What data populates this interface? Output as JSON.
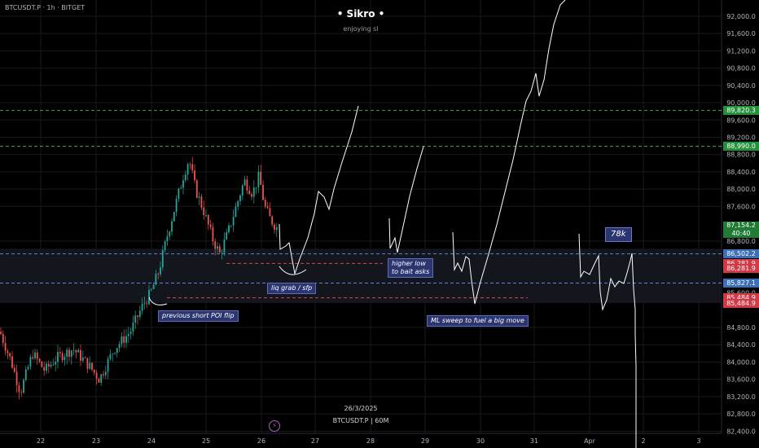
{
  "header": {
    "symbol_line": "BTCUSDT.P · 1h · BITGET",
    "title": "• Sikro •",
    "subtitle": "enjoying sl"
  },
  "watermark": {
    "date": "26/3/2025",
    "symbol_line": "BTCUSDT.P | 60M"
  },
  "icons": {
    "flash": "lightning-icon"
  },
  "colors": {
    "background": "#000000",
    "grid": "#1a1a1a",
    "candle_up": "#26a69a",
    "candle_down": "#ef5350",
    "level_green": "#3fae4f",
    "level_blue": "#5f82d6",
    "level_red": "#e0444f",
    "zone": "#13161c",
    "drawing": "#ffffff"
  },
  "price_axis": {
    "ticks": [
      "92,000.0",
      "91,600.0",
      "91,200.0",
      "90,800.0",
      "90,400.0",
      "90,000.0",
      "89,600.0",
      "89,200.0",
      "88,800.0",
      "88,400.0",
      "88,000.0",
      "87,600.0",
      "86,800.0",
      "85,600.0",
      "84,800.0",
      "84,400.0",
      "84,000.0",
      "83,600.0",
      "83,200.0",
      "82,800.0",
      "82,400.0"
    ],
    "tags": [
      {
        "label": "89,820.3",
        "style": "green",
        "price": 89820.3
      },
      {
        "label": "88,990.0",
        "style": "green",
        "price": 88990.0
      },
      {
        "label": "87,154.2",
        "style": "current",
        "price": 87154.2,
        "sub": "40:40"
      },
      {
        "label": "86,502.2",
        "style": "blue",
        "price": 86502.2
      },
      {
        "label": "86,281.9",
        "style": "red",
        "price": 86281.9
      },
      {
        "label": "86,281.9",
        "style": "red",
        "price": 86160.0
      },
      {
        "label": "85,827.1",
        "style": "blue",
        "price": 85827.1
      },
      {
        "label": "85,484.9",
        "style": "red",
        "price": 85484.9
      },
      {
        "label": "85,484.9",
        "style": "red",
        "price": 85364.9
      }
    ]
  },
  "time_axis": {
    "labels": [
      "22",
      "23",
      "24",
      "25",
      "26",
      "27",
      "28",
      "29",
      "30",
      "31",
      "Apr",
      "2",
      "3"
    ]
  },
  "annotations": {
    "previous_short": "previous short POI flip",
    "liq_grab": "liq grab / sfp",
    "higher_low_1": "higher low",
    "higher_low_2": "to bait asks",
    "ml_sweep": "ML sweep to fuel a big move",
    "target": "78k"
  },
  "chart_data": {
    "type": "candlestick",
    "title": "BTCUSDT.P · 1h · BITGET",
    "y_range": [
      82350,
      92300
    ],
    "x_labels": [
      "22",
      "23",
      "24",
      "25",
      "26",
      "27",
      "28",
      "29",
      "30",
      "31",
      "Apr",
      "2",
      "3"
    ],
    "horizontal_levels": [
      {
        "price": 89820.3,
        "color": "green",
        "style": "dashed"
      },
      {
        "price": 88990.0,
        "color": "green",
        "style": "dashed"
      },
      {
        "price": 86502.2,
        "color": "blue",
        "style": "dashed"
      },
      {
        "price": 85827.1,
        "color": "blue",
        "style": "dashed"
      },
      {
        "price": 86281.9,
        "color": "red",
        "style": "dashed"
      },
      {
        "price": 85484.9,
        "color": "red",
        "style": "dashed"
      }
    ],
    "zone": [
      85364.9,
      86620.0
    ],
    "current_price": 87154.2,
    "session_start_price": 84600,
    "approx_path": [
      {
        "x": "22",
        "close": 84200
      },
      {
        "x": "23",
        "close": 83700
      },
      {
        "x": "24",
        "close": 85300
      },
      {
        "x": "24.5",
        "close": 87600
      },
      {
        "x": "25",
        "close": 88400
      },
      {
        "x": "25.3",
        "close": 86500
      },
      {
        "x": "25.8",
        "close": 88200
      },
      {
        "x": "26",
        "close": 87900
      },
      {
        "x": "26.3",
        "close": 86800
      }
    ]
  }
}
